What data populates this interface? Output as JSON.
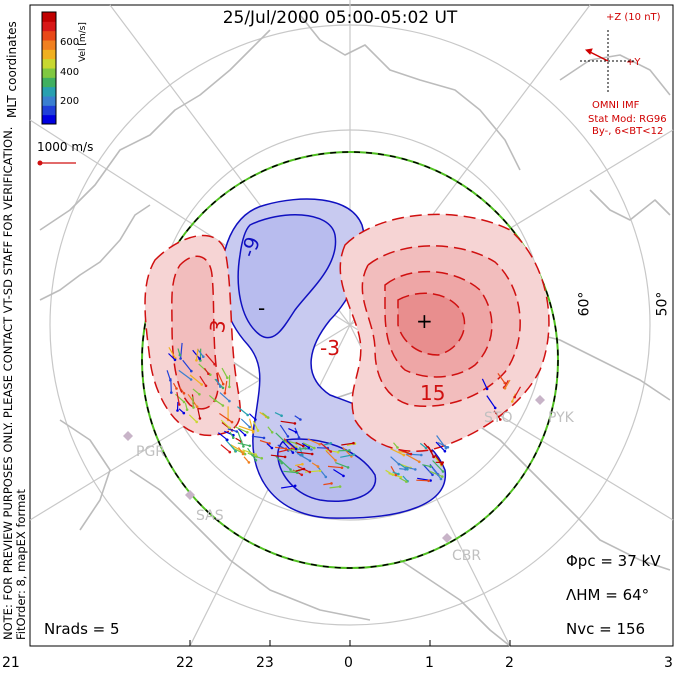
{
  "title": "25/Jul/2000 05:00-05:02 UT",
  "imf": {
    "z_label": "+Z (10 nT)",
    "y_label": "+Y",
    "source": "OMNI IMF",
    "model": "Stat Mod: RG96",
    "condition": "By-, 6<BT<12",
    "color": "#d00000"
  },
  "colorbar": {
    "label": "Vel [m/s]",
    "ticks": [
      "600",
      "400",
      "200"
    ],
    "colors": [
      "#0000e0",
      "#2040d8",
      "#3a7fd0",
      "#28a0b0",
      "#40b060",
      "#80c840",
      "#c8d830",
      "#f0b020",
      "#f08020",
      "#e84818",
      "#d81818",
      "#c00000"
    ]
  },
  "coords_label": "MLT coordinates",
  "reference_vector": "1000 m/s",
  "side_note_lines": [
    "NOTE: FOR PREVIEW PURPOSES ONLY. PLEASE CONTACT VT-SD STAFF FOR VERIFICATION.",
    "FitOrder: 8, mapEX format"
  ],
  "contour_labels": [
    "-9",
    "-",
    "-3",
    "3",
    "+",
    "15"
  ],
  "stations": [
    "PGR",
    "SAS",
    "STO",
    "PYK",
    "CBR"
  ],
  "latitude_labels": [
    "60°",
    "50°"
  ],
  "mlt_ticks": [
    "21",
    "22",
    "23",
    "0",
    "1",
    "2",
    "3"
  ],
  "stats": {
    "phi_pc": "Φpc = 37 kV",
    "lambda_hm": "ΛHM = 64°",
    "n_vc": "Nvc = 156",
    "n_rads": "Nrads = 5"
  },
  "colors": {
    "negative_cell": "#1010c0",
    "positive_cell": "#d01010",
    "hm_boundary": "#50c020"
  }
}
